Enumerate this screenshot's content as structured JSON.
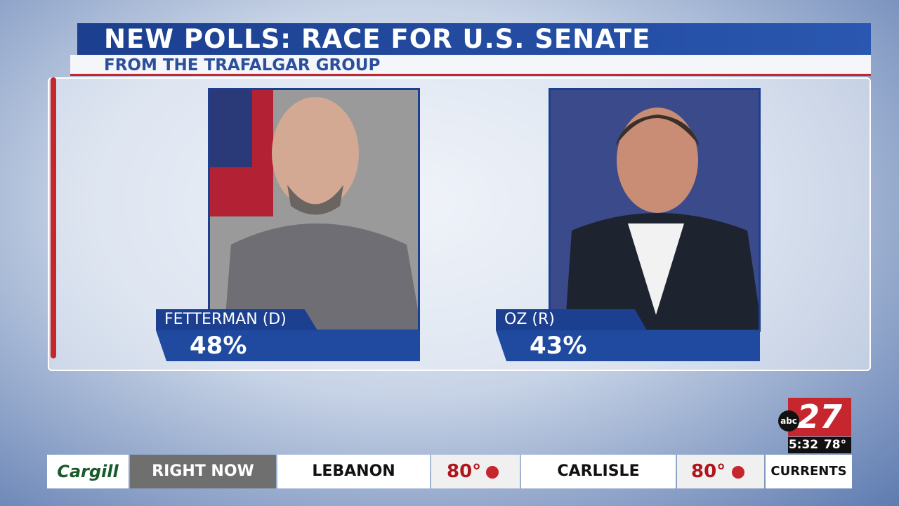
{
  "header": {
    "title": "NEW POLLS: RACE FOR U.S. SENATE",
    "subtitle": "FROM THE TRAFALGAR GROUP"
  },
  "candidates": [
    {
      "name": "FETTERMAN (D)",
      "percent": "48%"
    },
    {
      "name": "OZ (R)",
      "percent": "43%"
    }
  ],
  "station": {
    "network": "abc",
    "channel": "27",
    "time": "5:32",
    "temperature": "78°"
  },
  "ticker": {
    "sponsor": "Cargill",
    "segment": "RIGHT NOW",
    "items": [
      {
        "city": "LEBANON",
        "temp": "80°"
      },
      {
        "city": "CARLISLE",
        "temp": "80°"
      }
    ],
    "next": "CURRENTS"
  }
}
